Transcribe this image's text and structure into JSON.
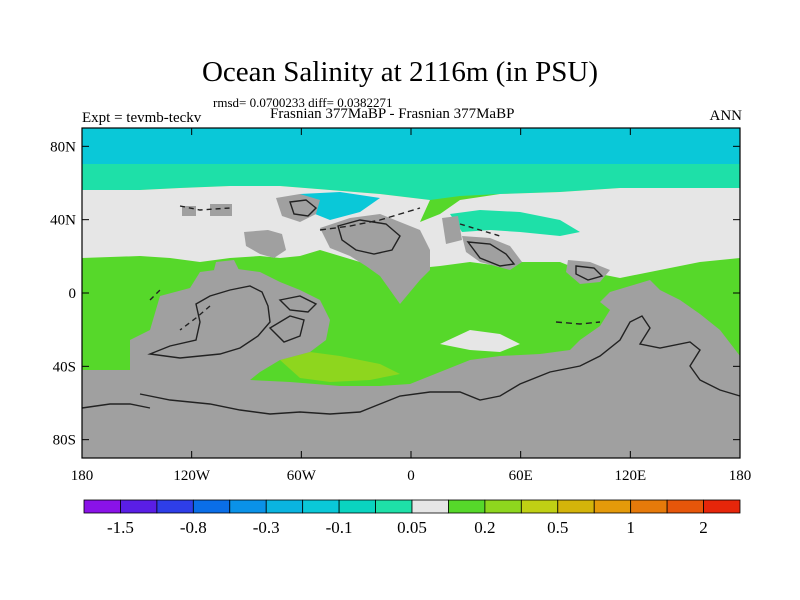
{
  "header": {
    "title": "Ocean Salinity at 2116m (in PSU)",
    "stats": "rmsd= 0.0700233 diff= 0.0382271",
    "experiment": "Expt = tevmb-teckv",
    "comparison": "Frasnian 377MaBP - Frasnian 377MaBP",
    "period": "ANN"
  },
  "axes": {
    "x_ticks": [
      {
        "lon": -180,
        "label": "180"
      },
      {
        "lon": -120,
        "label": "120W"
      },
      {
        "lon": -60,
        "label": "60W"
      },
      {
        "lon": 0,
        "label": "0"
      },
      {
        "lon": 60,
        "label": "60E"
      },
      {
        "lon": 120,
        "label": "120E"
      },
      {
        "lon": 180,
        "label": "180"
      }
    ],
    "y_ticks": [
      {
        "lat": 80,
        "label": "80N"
      },
      {
        "lat": 40,
        "label": "40N"
      },
      {
        "lat": 0,
        "label": "0"
      },
      {
        "lat": -40,
        "label": "40S"
      },
      {
        "lat": -80,
        "label": "80S"
      }
    ],
    "lon_range": [
      -180,
      180
    ],
    "lat_range": [
      -90,
      90
    ]
  },
  "colors": {
    "land": "#a0a0a0",
    "bins": [
      "#8a12e8",
      "#5a1ee6",
      "#2e3ee8",
      "#0a6ee8",
      "#0a92e8",
      "#0ab4e0",
      "#0ac8d8",
      "#0ad4c0",
      "#1ee0a8",
      "#e6e6e6",
      "#56d82a",
      "#8ed61e",
      "#c0d014",
      "#d4b40a",
      "#e49a0a",
      "#e67a0a",
      "#e6560a",
      "#e6260a"
    ]
  },
  "colorbar": {
    "labels": [
      {
        "after_bin": 1,
        "label": "-1.5"
      },
      {
        "after_bin": 3,
        "label": "-0.8"
      },
      {
        "after_bin": 5,
        "label": "-0.3"
      },
      {
        "after_bin": 7,
        "label": "-0.1"
      },
      {
        "after_bin": 9,
        "label": "0.05"
      },
      {
        "after_bin": 11,
        "label": "0.2"
      },
      {
        "after_bin": 13,
        "label": "0.5"
      },
      {
        "after_bin": 15,
        "label": "1"
      },
      {
        "after_bin": 17,
        "label": "2"
      }
    ]
  }
}
